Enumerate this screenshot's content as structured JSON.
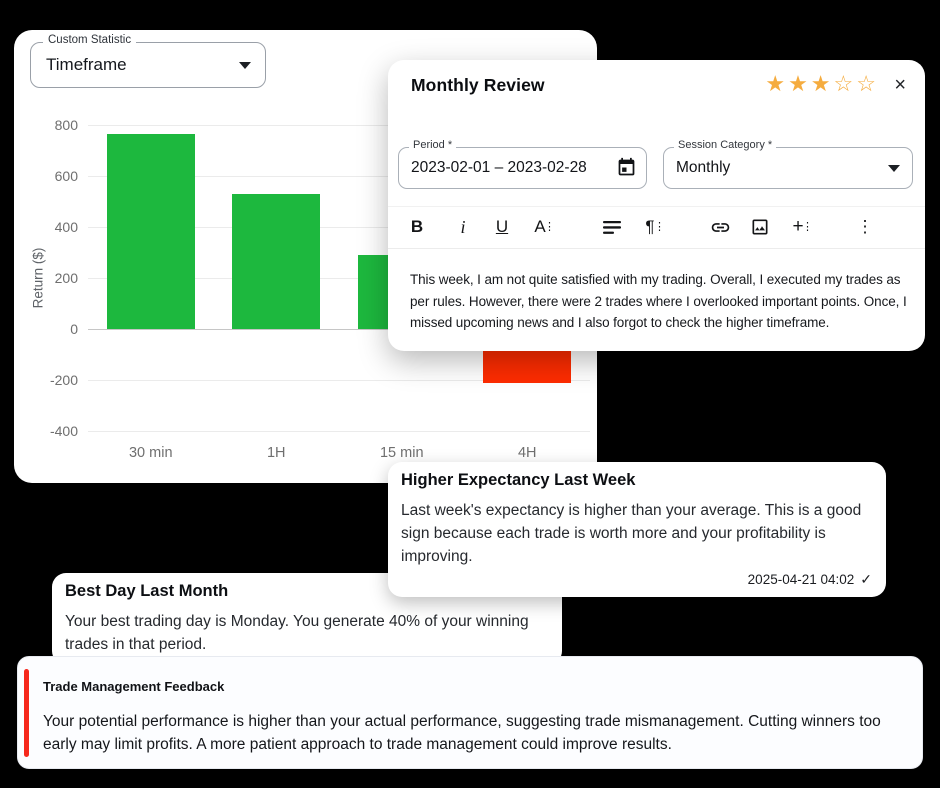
{
  "colors": {
    "positive_green": "#1db83e",
    "negative_red": "#fe2c01",
    "star_orange": "#f5ac3f",
    "accent_red": "#f6281c"
  },
  "icons": {
    "close": "×",
    "check": "✓",
    "dots": "⋮",
    "more": "⋮"
  },
  "chart_card": {
    "selector_label": "Custom Statistic",
    "selector_value": "Timeframe"
  },
  "chart_data": {
    "type": "bar",
    "title": "",
    "xlabel": "",
    "ylabel": "Return ($)",
    "categories": [
      "30 min",
      "1H",
      "15 min",
      "4H"
    ],
    "values": [
      765,
      530,
      290,
      -210
    ],
    "ylim": [
      -400,
      800
    ],
    "yticks": [
      800,
      600,
      400,
      200,
      0,
      -200,
      -400
    ],
    "grid": true,
    "legend": false,
    "positive_color": "#1db83e",
    "negative_color": "#fe2c01"
  },
  "review_modal": {
    "title": "Monthly Review",
    "rating": {
      "filled": 3,
      "total": 5
    },
    "period_field": {
      "label": "Period *",
      "value": "2023-02-01 – 2023-02-28"
    },
    "session_field": {
      "label": "Session Category *",
      "value": "Monthly"
    },
    "toolbar": {
      "bold": "B",
      "italic": "i",
      "underline": "U",
      "text_style": "A",
      "paragraph": "¶",
      "insert": "+"
    },
    "body": "This week, I am not quite satisfied with my trading. Overall, I executed my trades as per rules. However, there were 2 trades where I overlooked important points. Once, I missed upcoming news and I also forgot to check the higher timeframe."
  },
  "insights": {
    "higher_expectancy": {
      "title": "Higher Expectancy Last Week",
      "body": "Last week's expectancy is higher than your average. This is a good sign because each trade is worth more and your profitability is improving.",
      "timestamp": "2025-04-21 04:02"
    },
    "best_day": {
      "title": "Best Day Last Month",
      "body": "Your best trading day is Monday. You generate 40% of your winning trades in that period."
    },
    "trade_management": {
      "title": "Trade Management Feedback",
      "body": "Your potential performance is higher than your actual performance, suggesting trade mismanagement. Cutting winners too early may limit profits. A more patient approach to trade management could improve results."
    }
  }
}
